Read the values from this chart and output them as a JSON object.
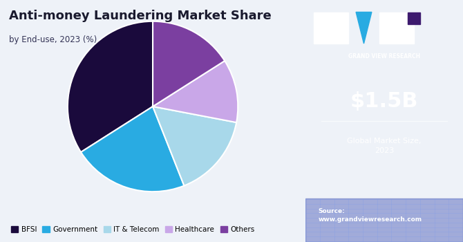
{
  "title": "Anti-money Laundering Market Share",
  "subtitle": "by End-use, 2023 (%)",
  "labels": [
    "BFSI",
    "Government",
    "IT & Telecom",
    "Healthcare",
    "Others"
  ],
  "values": [
    34,
    22,
    16,
    12,
    16
  ],
  "colors": [
    "#1a0a3c",
    "#29abe2",
    "#a8d8ea",
    "#c9a7e8",
    "#7b3fa0"
  ],
  "startangle": 90,
  "bg_left": "#eef2f8",
  "bg_right": "#3d1a6e",
  "market_size": "$1.5B",
  "market_label": "Global Market Size,\n2023",
  "source_text": "Source:\nwww.grandviewresearch.com",
  "legend_labels": [
    "BFSI",
    "Government",
    "IT & Telecom",
    "Healthcare",
    "Others"
  ]
}
